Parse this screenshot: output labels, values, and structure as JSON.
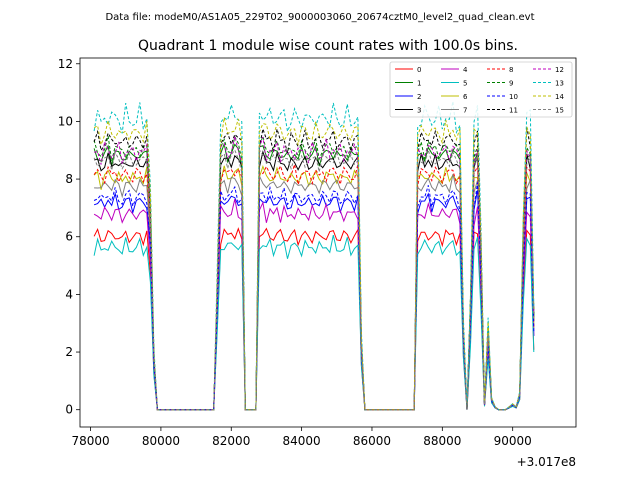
{
  "file_label": "Data file: modeM0/AS1A05_229T02_9000003060_20674cztM0_level2_quad_clean.evt",
  "chart_data": {
    "type": "line",
    "title": "Quadrant 1 module wise count rates with 100.0s bins.",
    "xlabel": "",
    "ylabel": "",
    "x_offset_label": "+3.017e8",
    "xlim": [
      77700,
      91800
    ],
    "ylim": [
      -0.6,
      12.2
    ],
    "xticks": [
      78000,
      80000,
      82000,
      84000,
      86000,
      88000,
      90000
    ],
    "yticks": [
      0,
      2,
      4,
      6,
      8,
      10,
      12
    ],
    "xtick_labels": [
      "78000",
      "80000",
      "82000",
      "84000",
      "86000",
      "88000",
      "90000"
    ],
    "ytick_labels": [
      "0",
      "2",
      "4",
      "6",
      "8",
      "10",
      "12"
    ],
    "x_start": 78100,
    "x_step": 100,
    "legend_position": "top-right",
    "envelope": [
      0.97,
      0.98,
      0.95,
      0.97,
      0.99,
      0.96,
      0.98,
      0.97,
      0.95,
      0.98,
      0.97,
      0.96,
      0.97,
      0.98,
      0.96,
      0.98,
      0.75,
      0.2,
      0,
      0,
      0,
      0,
      0,
      0,
      0,
      0,
      0,
      0,
      0,
      0,
      0,
      0,
      0,
      0,
      0,
      0.45,
      0.97,
      0.99,
      0.97,
      0.98,
      1,
      0.98,
      0.95,
      0,
      0,
      0,
      0,
      0.98,
      1,
      0.97,
      0.98,
      0.96,
      0.99,
      0.97,
      0.98,
      0.95,
      0.97,
      0.98,
      0.96,
      0.97,
      0.98,
      0.96,
      0.97,
      0.98,
      0.96,
      0.97,
      0.98,
      0.97,
      0.99,
      0.97,
      0.96,
      0.97,
      0.98,
      0.96,
      0.97,
      0.98,
      0.25,
      0,
      0,
      0,
      0,
      0,
      0,
      0,
      0,
      0,
      0,
      0,
      0,
      0,
      0,
      0,
      0.95,
      0.98,
      0.97,
      0.99,
      0.96,
      0.98,
      0.97,
      0.96,
      0.98,
      0.97,
      0.99,
      0.96,
      0.95,
      0.3,
      0,
      0.4,
      0.95,
      1,
      0.6,
      0.02,
      0.3,
      0.04,
      0.01,
      0,
      0,
      0,
      0.01,
      0.02,
      0.01,
      0.06,
      0.65,
      0.99,
      0.97,
      0.35
    ],
    "series": [
      {
        "name": "0",
        "color": "#ff0000",
        "style": "solid",
        "level": 6.2,
        "wiggle": 0.18
      },
      {
        "name": "1",
        "color": "#008000",
        "style": "solid",
        "level": 9.1,
        "wiggle": 0.2
      },
      {
        "name": "2",
        "color": "#0000ff",
        "style": "solid",
        "level": 7.4,
        "wiggle": 0.18
      },
      {
        "name": "3",
        "color": "#000000",
        "style": "solid",
        "level": 8.8,
        "wiggle": 0.16
      },
      {
        "name": "4",
        "color": "#bf00bf",
        "style": "solid",
        "level": 7.0,
        "wiggle": 0.2
      },
      {
        "name": "5",
        "color": "#00bfbf",
        "style": "solid",
        "level": 5.8,
        "wiggle": 0.2
      },
      {
        "name": "6",
        "color": "#bfbf00",
        "style": "solid",
        "level": 8.3,
        "wiggle": 0.18
      },
      {
        "name": "7",
        "color": "#808080",
        "style": "solid",
        "level": 8.0,
        "wiggle": 0.18
      },
      {
        "name": "8",
        "color": "#ff0000",
        "style": "dashed",
        "level": 8.4,
        "wiggle": 0.2
      },
      {
        "name": "9",
        "color": "#008000",
        "style": "dashed",
        "level": 9.3,
        "wiggle": 0.22
      },
      {
        "name": "10",
        "color": "#0000ff",
        "style": "dashed",
        "level": 7.6,
        "wiggle": 0.2
      },
      {
        "name": "11",
        "color": "#000000",
        "style": "dashed",
        "level": 9.6,
        "wiggle": 0.2
      },
      {
        "name": "12",
        "color": "#bf00bf",
        "style": "dashed",
        "level": 9.2,
        "wiggle": 0.25
      },
      {
        "name": "13",
        "color": "#00bfbf",
        "style": "dashed",
        "level": 10.4,
        "wiggle": 0.3
      },
      {
        "name": "14",
        "color": "#bfbf00",
        "style": "dashed",
        "level": 9.9,
        "wiggle": 0.25
      },
      {
        "name": "15",
        "color": "#808080",
        "style": "dashed",
        "level": 8.9,
        "wiggle": 0.2
      }
    ]
  }
}
